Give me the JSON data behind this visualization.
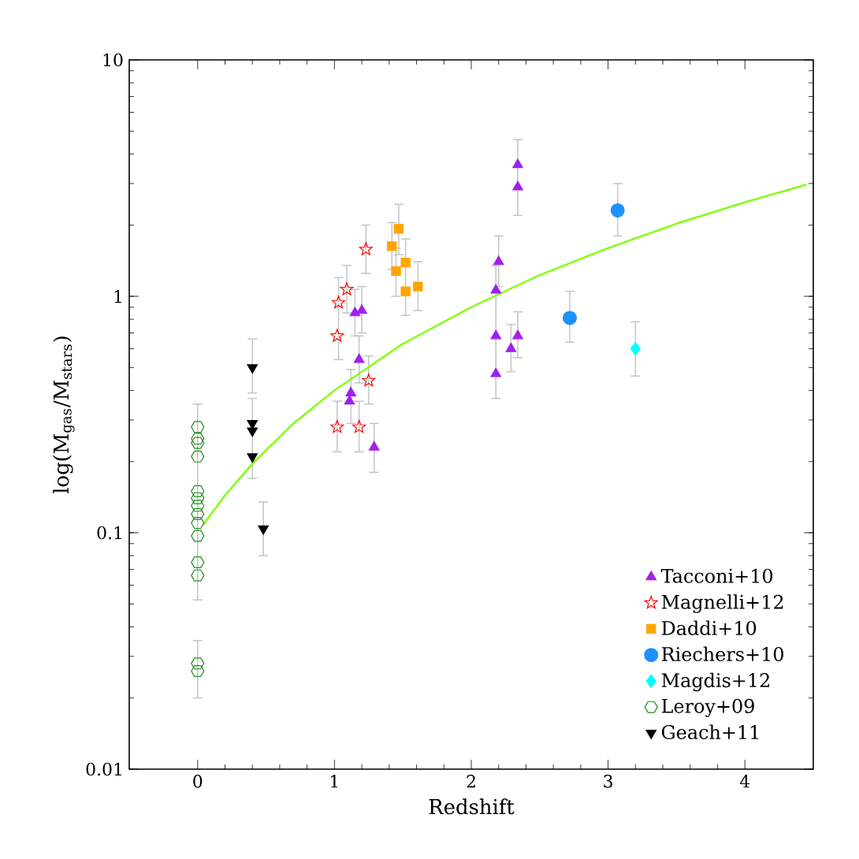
{
  "chart_data": {
    "type": "scatter",
    "xlabel": "Redshift",
    "ylabel": "log(M$_{gas}$/M$_{stars}$)",
    "xlim": [
      -0.5,
      4.5
    ],
    "ylim": [
      0.01,
      10
    ],
    "xticks": [
      0,
      1,
      2,
      3,
      4
    ],
    "yticks": [
      0.01,
      0.1,
      1,
      10
    ],
    "log": "y",
    "legend": "bottom right",
    "series": [
      {
        "name": "Tacconi+10",
        "color": "#a020f0",
        "marker": "triangle",
        "x": [
          1.15,
          1.2,
          1.18,
          1.12,
          1.11,
          1.29,
          2.34,
          2.34,
          2.2,
          2.18,
          2.18,
          2.34,
          2.29,
          2.18
        ],
        "values": [
          0.85,
          0.87,
          0.54,
          0.39,
          0.36,
          0.23,
          3.6,
          2.9,
          1.4,
          1.06,
          0.68,
          0.68,
          0.6,
          0.47
        ],
        "errors": [
          [
            0.68,
            1.07
          ],
          [
            0.7,
            1.1
          ],
          [
            0.43,
            0.68
          ],
          [
            0.29,
            0.49
          ],
          null,
          [
            0.18,
            0.29
          ],
          [
            2.2,
            4.6
          ],
          null,
          [
            1.1,
            1.8
          ],
          [
            0.37,
            1.35
          ],
          null,
          [
            0.55,
            0.86
          ],
          [
            0.48,
            0.76
          ],
          null
        ]
      },
      {
        "name": "Magnelli+12",
        "color": "#ff0000",
        "marker": "star",
        "x": [
          1.23,
          1.09,
          1.03,
          1.02,
          1.25,
          1.02,
          1.18
        ],
        "values": [
          1.58,
          1.07,
          0.94,
          0.68,
          0.44,
          0.28,
          0.28
        ],
        "errors": [
          [
            1.25,
            2.0
          ],
          [
            0.85,
            1.35
          ],
          [
            0.54,
            1.2
          ],
          null,
          [
            0.35,
            0.56
          ],
          [
            0.22,
            0.36
          ],
          [
            0.22,
            0.36
          ]
        ]
      },
      {
        "name": "Daddi+10",
        "color": "#ffa500",
        "marker": "square",
        "x": [
          1.47,
          1.42,
          1.52,
          1.45,
          1.61,
          1.52
        ],
        "values": [
          1.93,
          1.63,
          1.39,
          1.28,
          1.1,
          1.05
        ],
        "errors": [
          [
            1.5,
            2.45
          ],
          [
            1.3,
            2.05
          ],
          [
            0.83,
            1.75
          ],
          [
            1.0,
            1.6
          ],
          [
            0.87,
            1.4
          ],
          null
        ]
      },
      {
        "name": "Riechers+10",
        "color": "#1e90ff",
        "marker": "circle",
        "x": [
          3.07,
          2.72
        ],
        "values": [
          2.31,
          0.81
        ],
        "errors": [
          [
            1.8,
            3.0
          ],
          [
            0.64,
            1.05
          ]
        ]
      },
      {
        "name": "Magdis+12",
        "color": "#00ffff",
        "marker": "diamond",
        "x": [
          3.2
        ],
        "values": [
          0.6
        ],
        "errors": [
          [
            0.46,
            0.78
          ]
        ]
      },
      {
        "name": "Leroy+09",
        "color": "#228b22",
        "x": [
          0,
          0,
          0,
          0,
          0,
          0,
          0,
          0,
          0,
          0,
          0,
          0,
          0,
          0
        ],
        "values": [
          0.28,
          0.25,
          0.24,
          0.21,
          0.15,
          0.14,
          0.13,
          0.12,
          0.11,
          0.097,
          0.075,
          0.066,
          0.028,
          0.026
        ],
        "errors": [
          [
            0.052,
            0.35
          ],
          null,
          null,
          null,
          null,
          null,
          null,
          null,
          null,
          null,
          null,
          null,
          [
            0.02,
            0.035
          ],
          null
        ]
      },
      {
        "name": "Geach+11",
        "color": "#000000",
        "marker": "triangle down",
        "x": [
          0.4,
          0.4,
          0.4,
          0.4,
          0.48
        ],
        "values": [
          0.5,
          0.29,
          0.27,
          0.21,
          0.104
        ],
        "errors": [
          [
            0.39,
            0.66
          ],
          [
            0.17,
            0.37
          ],
          null,
          null,
          [
            0.08,
            0.135
          ]
        ]
      },
      {
        "type": "line",
        "color": "#7fff00",
        "marker": "none",
        "x": [
          0.04,
          0.2,
          0.4,
          0.7,
          1.0,
          1.5,
          2.0,
          2.5,
          3.0,
          3.5,
          4.0,
          4.45
        ],
        "values": [
          0.108,
          0.144,
          0.196,
          0.29,
          0.4,
          0.63,
          0.9,
          1.23,
          1.6,
          2.03,
          2.5,
          2.97
        ]
      }
    ]
  }
}
